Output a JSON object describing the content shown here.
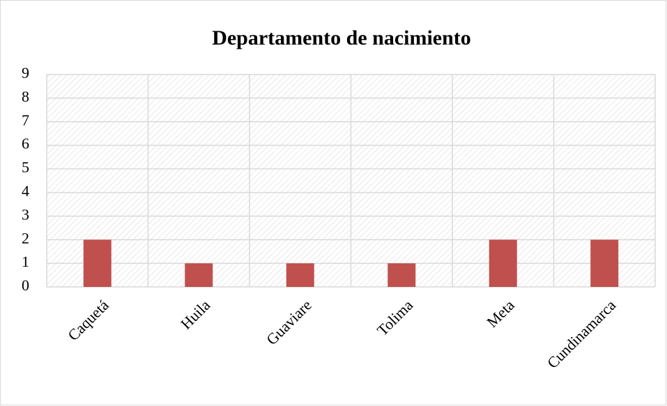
{
  "chart_data": {
    "type": "bar",
    "title": "Departamento de nacimiento",
    "categories": [
      "Caquetá",
      "Huila",
      "Guaviare",
      "Tolima",
      "Meta",
      "Cundinamarca"
    ],
    "values": [
      2,
      1,
      1,
      1,
      2,
      2
    ],
    "color": "#c0504d",
    "ylim": [
      0,
      9
    ],
    "yticks": [
      0,
      1,
      2,
      3,
      4,
      5,
      6,
      7,
      8,
      9
    ],
    "grid": true
  }
}
